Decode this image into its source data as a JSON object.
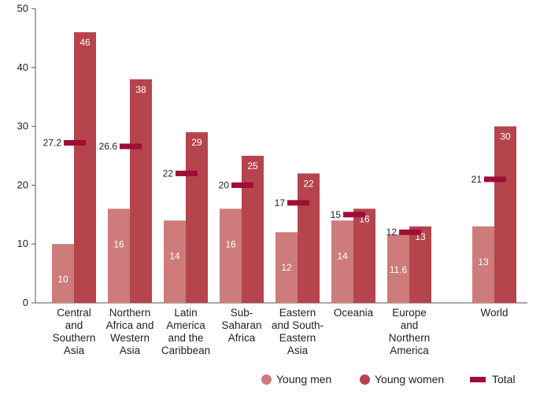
{
  "chart_data": {
    "type": "bar",
    "ylim": [
      0,
      50
    ],
    "yticks": [
      0,
      10,
      20,
      30,
      40,
      50
    ],
    "categories": [
      [
        "Central",
        "and",
        "Southern",
        "Asia"
      ],
      [
        "Northern",
        "Africa and",
        "Western",
        "Asia"
      ],
      [
        "Latin",
        "America",
        "and the",
        "Caribbean"
      ],
      [
        "Sub-",
        "Saharan",
        "Africa"
      ],
      [
        "Eastern",
        "and South-",
        "Eastern",
        "Asia"
      ],
      [
        "Oceania"
      ],
      [
        "Europe",
        "and",
        "Northern",
        "America"
      ],
      [
        "World"
      ]
    ],
    "series": [
      {
        "name": "Young men",
        "values": [
          10,
          16,
          14,
          16,
          12,
          14,
          11.6,
          13
        ],
        "labels": [
          "10",
          "16",
          "14",
          "16",
          "12",
          "14",
          "11.6",
          "13"
        ]
      },
      {
        "name": "Young women",
        "values": [
          46,
          38,
          29,
          25,
          22,
          16,
          13,
          30
        ],
        "labels": [
          "46",
          "38",
          "29",
          "25",
          "22",
          "16",
          "13",
          "30"
        ]
      },
      {
        "name": "Total",
        "values": [
          27.2,
          26.6,
          22,
          20,
          17,
          15,
          12,
          21
        ],
        "labels": [
          "27.2",
          "26.6",
          "22",
          "20",
          "17",
          "15",
          "12",
          "21"
        ]
      }
    ],
    "colors": {
      "young_men": "#cd7b7b",
      "young_women": "#b5444d",
      "total": "#9e0e36",
      "axis": "#555555"
    },
    "grid": false,
    "legend_position": "bottom-right"
  }
}
